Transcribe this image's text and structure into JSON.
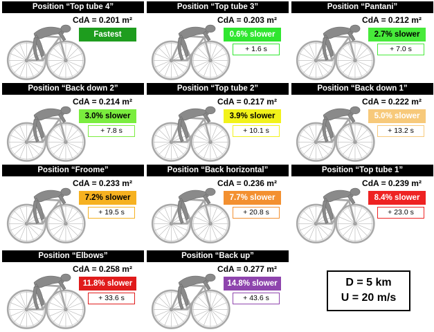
{
  "panels": [
    {
      "title": "Position “Top tube 4”",
      "cda": "CdA = 0.201 m²",
      "slower": "Fastest",
      "delta": "",
      "color": "#1e9d1e",
      "text_color": "#ffffff"
    },
    {
      "title": "Position “Top tube 3”",
      "cda": "CdA = 0.203 m²",
      "slower": "0.6% slower",
      "delta": "+ 1.6 s",
      "color": "#2fe62f",
      "text_color": "#ffffff"
    },
    {
      "title": "Position “Pantani”",
      "cda": "CdA = 0.212 m²",
      "slower": "2.7% slower",
      "delta": "+ 7.0 s",
      "color": "#47ea3a",
      "text_color": "#000000"
    },
    {
      "title": "Position “Back down 2”",
      "cda": "CdA = 0.214 m²",
      "slower": "3.0% slower",
      "delta": "+ 7.8 s",
      "color": "#7aed3e",
      "text_color": "#000000"
    },
    {
      "title": "Position “Top tube 2”",
      "cda": "CdA = 0.217 m²",
      "slower": "3.9% slower",
      "delta": "+ 10.1 s",
      "color": "#f2f21a",
      "text_color": "#000000"
    },
    {
      "title": "Position “Back down 1”",
      "cda": "CdA = 0.222 m²",
      "slower": "5.0% slower",
      "delta": "+ 13.2 s",
      "color": "#f7c97a",
      "text_color": "#ffffff"
    },
    {
      "title": "Position “Froome”",
      "cda": "CdA = 0.233 m²",
      "slower": "7.2% slower",
      "delta": "+ 19.5 s",
      "color": "#f6b120",
      "text_color": "#000000"
    },
    {
      "title": "Position “Back horizontal”",
      "cda": "CdA = 0.236 m²",
      "slower": "7.7% slower",
      "delta": "+ 20.8 s",
      "color": "#f39030",
      "text_color": "#ffffff"
    },
    {
      "title": "Position “Top tube 1”",
      "cda": "CdA = 0.239 m²",
      "slower": "8.4% slower",
      "delta": "+ 23.0 s",
      "color": "#ee2222",
      "text_color": "#ffffff"
    },
    {
      "title": "Position “Elbows”",
      "cda": "CdA = 0.258 m²",
      "slower": "11.8% slower",
      "delta": "+ 33.6 s",
      "color": "#e01b1b",
      "text_color": "#ffffff"
    },
    {
      "title": "Position “Back up”",
      "cda": "CdA = 0.277 m²",
      "slower": "14.8% slower",
      "delta": "+ 43.6 s",
      "color": "#8e44ad",
      "text_color": "#ffffff"
    }
  ],
  "info": {
    "line1": "D = 5 km",
    "line2": "U = 20 m/s"
  }
}
